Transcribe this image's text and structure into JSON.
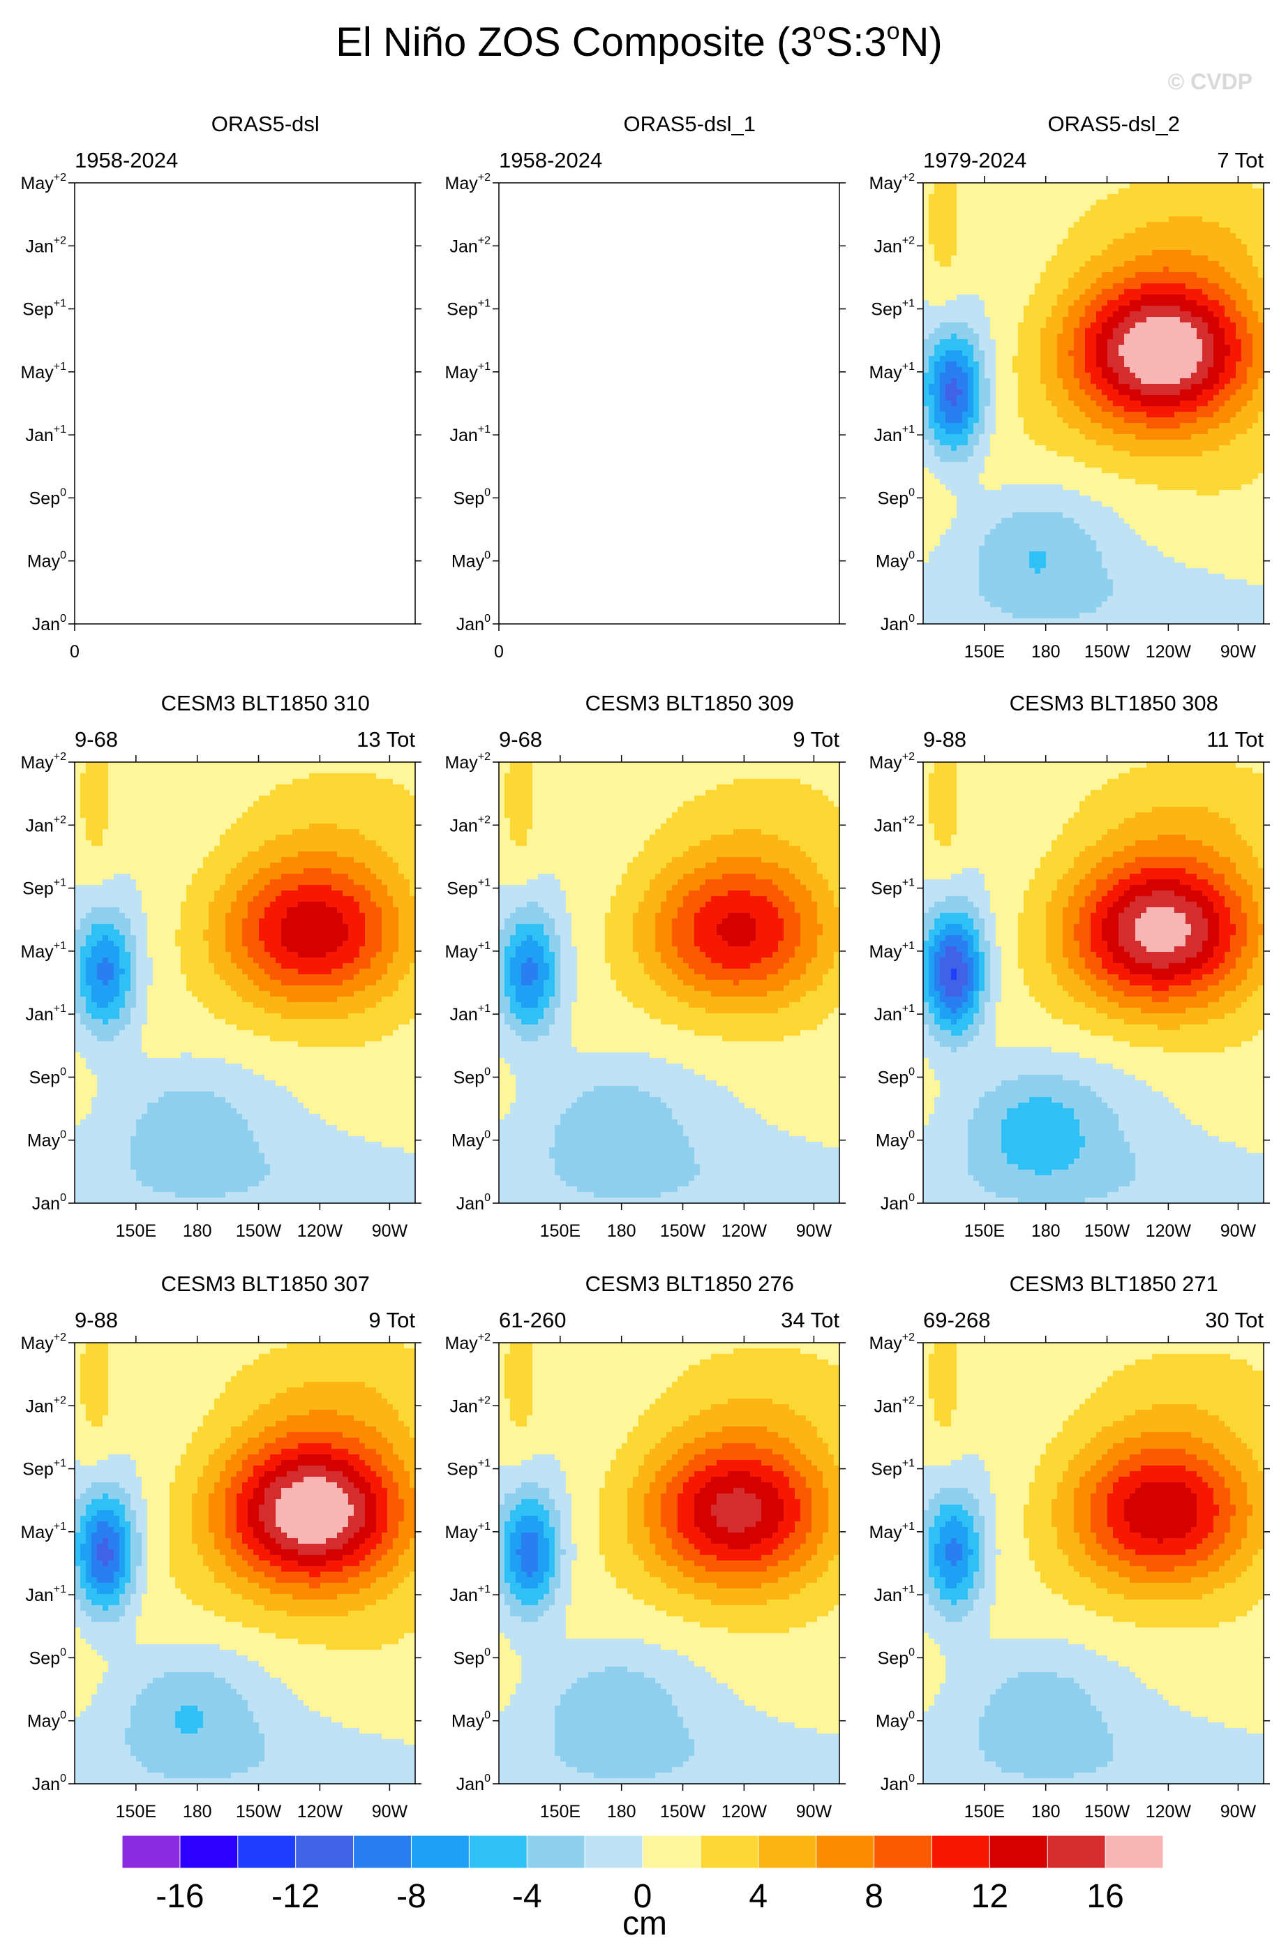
{
  "title_main": "El Niño ZOS Composite (3",
  "title_deg1": "o",
  "title_mid": "S:3",
  "title_deg2": "o",
  "title_end": "N)",
  "watermark": "© CVDP",
  "y_ticks": [
    {
      "base": "May",
      "sup": "+2"
    },
    {
      "base": "Jan",
      "sup": "+2"
    },
    {
      "base": "Sep",
      "sup": "+1"
    },
    {
      "base": "May",
      "sup": "+1"
    },
    {
      "base": "Jan",
      "sup": "+1"
    },
    {
      "base": "Sep",
      "sup": "0"
    },
    {
      "base": "May",
      "sup": "0"
    },
    {
      "base": "Jan",
      "sup": "0"
    }
  ],
  "x_ticks": [
    "150E",
    "180",
    "150W",
    "120W",
    "90W"
  ],
  "x_ticks_empty": [
    "0"
  ],
  "colorbar": {
    "colors": [
      "#8a2be2",
      "#2b00ff",
      "#1f3fff",
      "#3f62e6",
      "#2a7ff0",
      "#1ea0f5",
      "#2fc0f6",
      "#8fd0ee",
      "#bfe3f4",
      "#fff59a",
      "#fdd835",
      "#fcb515",
      "#fc8b00",
      "#fc5a00",
      "#f61800",
      "#d50000",
      "#d52d2d",
      "#f9b4b4"
    ],
    "labels": [
      "-16",
      "-12",
      "-8",
      "-4",
      "0",
      "4",
      "8",
      "12",
      "16"
    ],
    "unit": "cm"
  },
  "panels": [
    {
      "title": "ORAS5-dsl",
      "years": "1958-2024",
      "count": "",
      "empty": true
    },
    {
      "title": "ORAS5-dsl_1",
      "years": "1958-2024",
      "count": "",
      "empty": true
    },
    {
      "title": "ORAS5-dsl_2",
      "years": "1979-2024",
      "count": "7 Tot",
      "empty": false,
      "strength": 1.1,
      "neg": 0.75
    },
    {
      "title": "CESM3 BLT1850 310",
      "years": "9-68",
      "count": "13 Tot",
      "empty": false,
      "strength": 0.78,
      "neg": 0.6
    },
    {
      "title": "CESM3 BLT1850 309",
      "years": "9-68",
      "count": "9 Tot",
      "empty": false,
      "strength": 0.72,
      "neg": 0.6
    },
    {
      "title": "CESM3 BLT1850 308",
      "years": "9-88",
      "count": "11 Tot",
      "empty": false,
      "strength": 1.0,
      "neg": 0.85
    },
    {
      "title": "CESM3 BLT1850 307",
      "years": "9-88",
      "count": "9 Tot",
      "empty": false,
      "strength": 1.08,
      "neg": 0.75
    },
    {
      "title": "CESM3 BLT1850 276",
      "years": "61-260",
      "count": "34 Tot",
      "empty": false,
      "strength": 0.86,
      "neg": 0.65
    },
    {
      "title": "CESM3 BLT1850 271",
      "years": "69-268",
      "count": "30 Tot",
      "empty": false,
      "strength": 0.8,
      "neg": 0.6
    }
  ],
  "chart_data": {
    "type": "heatmap",
    "title": "El Niño ZOS Composite (3oS:3oN)",
    "xlabel": "",
    "ylabel": "",
    "x_tick_labels": [
      "150E",
      "180",
      "150W",
      "120W",
      "90W"
    ],
    "y_tick_labels": [
      "Jan0",
      "May0",
      "Sep0",
      "Jan+1",
      "May+1",
      "Sep+1",
      "Jan+2",
      "May+2"
    ],
    "color_levels": [
      -16,
      -14,
      -12,
      -10,
      -8,
      -6,
      -4,
      -2,
      0,
      2,
      4,
      6,
      8,
      10,
      12,
      14,
      16
    ],
    "units": "cm",
    "series": [
      {
        "name": "ORAS5-dsl",
        "years": "1958-2024",
        "values": []
      },
      {
        "name": "ORAS5-dsl_1",
        "years": "1958-2024",
        "values": []
      },
      {
        "name": "ORAS5-dsl_2",
        "years": "1979-2024",
        "events": 7,
        "max_positive": 17,
        "min_negative": -12
      },
      {
        "name": "CESM3 BLT1850 310",
        "years": "9-68",
        "events": 13,
        "max_positive": 13,
        "min_negative": -10
      },
      {
        "name": "CESM3 BLT1850 309",
        "years": "9-68",
        "events": 9,
        "max_positive": 12,
        "min_negative": -10
      },
      {
        "name": "CESM3 BLT1850 308",
        "years": "9-88",
        "events": 11,
        "max_positive": 16,
        "min_negative": -15
      },
      {
        "name": "CESM3 BLT1850 307",
        "years": "9-88",
        "events": 9,
        "max_positive": 17,
        "min_negative": -13
      },
      {
        "name": "CESM3 BLT1850 276",
        "years": "61-260",
        "events": 34,
        "max_positive": 14,
        "min_negative": -12
      },
      {
        "name": "CESM3 BLT1850 271",
        "years": "69-268",
        "events": 30,
        "max_positive": 13,
        "min_negative": -10
      }
    ]
  }
}
